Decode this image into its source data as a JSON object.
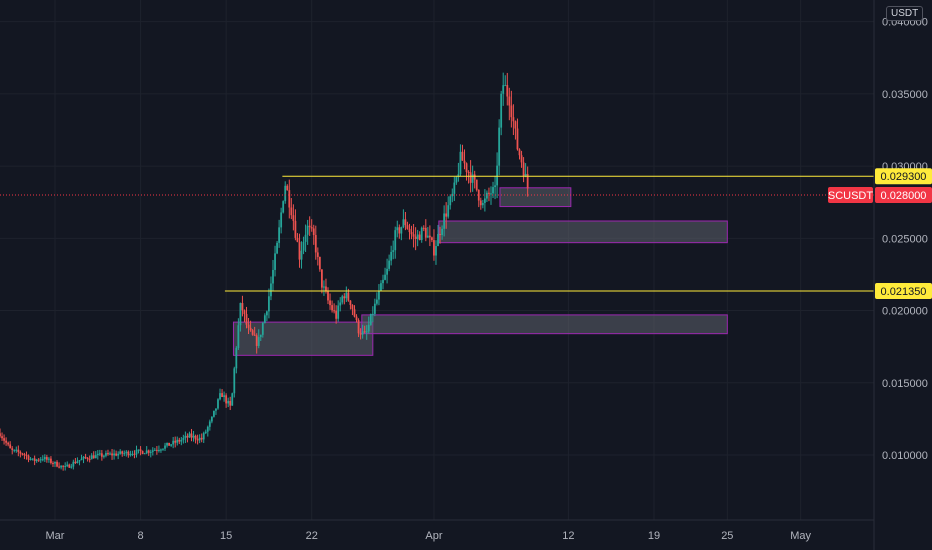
{
  "currency": "USDT",
  "colors": {
    "background": "#131722",
    "grid": "#1e222d",
    "up": "#26a69a",
    "down": "#ef5350",
    "level_line": "#ffeb3b",
    "zone_fill": "#5d606b",
    "zone_border": "#9c27b0",
    "current_price": "#f23645"
  },
  "chart_data": {
    "type": "candlestick",
    "symbol": "SCUSDT",
    "current_price": 0.028,
    "current_price_label": "0.028000",
    "ylim": [
      0.0055,
      0.0415
    ],
    "y_ticks": [
      "0.010000",
      "0.015000",
      "0.020000",
      "0.025000",
      "0.030000",
      "0.035000",
      "0.040000"
    ],
    "y_tick_values": [
      0.01,
      0.015,
      0.02,
      0.025,
      0.03,
      0.035,
      0.04
    ],
    "x_ticks": [
      {
        "label": "Mar",
        "day": 0
      },
      {
        "label": "8",
        "day": 7
      },
      {
        "label": "15",
        "day": 14
      },
      {
        "label": "22",
        "day": 21
      },
      {
        "label": "Apr",
        "day": 31
      },
      {
        "label": "12",
        "day": 42
      },
      {
        "label": "19",
        "day": 49
      },
      {
        "label": "25",
        "day": 55
      },
      {
        "label": "May",
        "day": 61
      }
    ],
    "xlim": [
      -4.5,
      67
    ],
    "levels": [
      {
        "price": 0.0293,
        "label": "0.029300",
        "from_day": 18.6
      },
      {
        "price": 0.02135,
        "label": "0.021350",
        "from_day": 13.9
      }
    ],
    "zones": [
      {
        "from_day": 14.6,
        "to_day": 26.0,
        "low": 0.0169,
        "high": 0.0192
      },
      {
        "from_day": 25.1,
        "to_day": 55.0,
        "low": 0.0184,
        "high": 0.0197
      },
      {
        "from_day": 31.4,
        "to_day": 55.0,
        "low": 0.0247,
        "high": 0.0262
      },
      {
        "from_day": 36.4,
        "to_day": 42.2,
        "low": 0.0272,
        "high": 0.0285
      }
    ],
    "price_path": [
      [
        -4.5,
        0.0115
      ],
      [
        -3.6,
        0.0103
      ],
      [
        -2.6,
        0.0101
      ],
      [
        -1.8,
        0.0096
      ],
      [
        -1.0,
        0.0098
      ],
      [
        0.0,
        0.0094
      ],
      [
        0.8,
        0.0091
      ],
      [
        1.8,
        0.0096
      ],
      [
        3.0,
        0.0099
      ],
      [
        4.2,
        0.01
      ],
      [
        5.4,
        0.0101
      ],
      [
        6.6,
        0.0102
      ],
      [
        7.8,
        0.0103
      ],
      [
        9.0,
        0.0106
      ],
      [
        10.2,
        0.011
      ],
      [
        11.0,
        0.0113
      ],
      [
        12.0,
        0.0111
      ],
      [
        12.8,
        0.0124
      ],
      [
        13.6,
        0.0143
      ],
      [
        14.4,
        0.0132
      ],
      [
        14.8,
        0.0173
      ],
      [
        15.2,
        0.0205
      ],
      [
        15.8,
        0.0186
      ],
      [
        16.6,
        0.0177
      ],
      [
        17.4,
        0.0205
      ],
      [
        18.2,
        0.0246
      ],
      [
        18.8,
        0.0289
      ],
      [
        19.4,
        0.0268
      ],
      [
        20.0,
        0.0238
      ],
      [
        20.6,
        0.0258
      ],
      [
        21.2,
        0.025
      ],
      [
        21.8,
        0.0219
      ],
      [
        22.4,
        0.0205
      ],
      [
        23.0,
        0.0196
      ],
      [
        23.6,
        0.0212
      ],
      [
        24.2,
        0.0206
      ],
      [
        24.8,
        0.0187
      ],
      [
        25.4,
        0.0182
      ],
      [
        26.0,
        0.0199
      ],
      [
        26.6,
        0.0214
      ],
      [
        27.2,
        0.0228
      ],
      [
        27.8,
        0.0251
      ],
      [
        28.6,
        0.0262
      ],
      [
        29.4,
        0.0249
      ],
      [
        30.2,
        0.0256
      ],
      [
        31.0,
        0.0242
      ],
      [
        31.8,
        0.0264
      ],
      [
        32.6,
        0.0281
      ],
      [
        33.2,
        0.0306
      ],
      [
        33.8,
        0.0297
      ],
      [
        34.4,
        0.0286
      ],
      [
        35.0,
        0.0273
      ],
      [
        35.6,
        0.0282
      ],
      [
        36.0,
        0.0282
      ],
      [
        36.6,
        0.0358
      ],
      [
        37.2,
        0.0347
      ],
      [
        37.8,
        0.0314
      ],
      [
        38.2,
        0.0303
      ],
      [
        38.8,
        0.028
      ]
    ]
  }
}
